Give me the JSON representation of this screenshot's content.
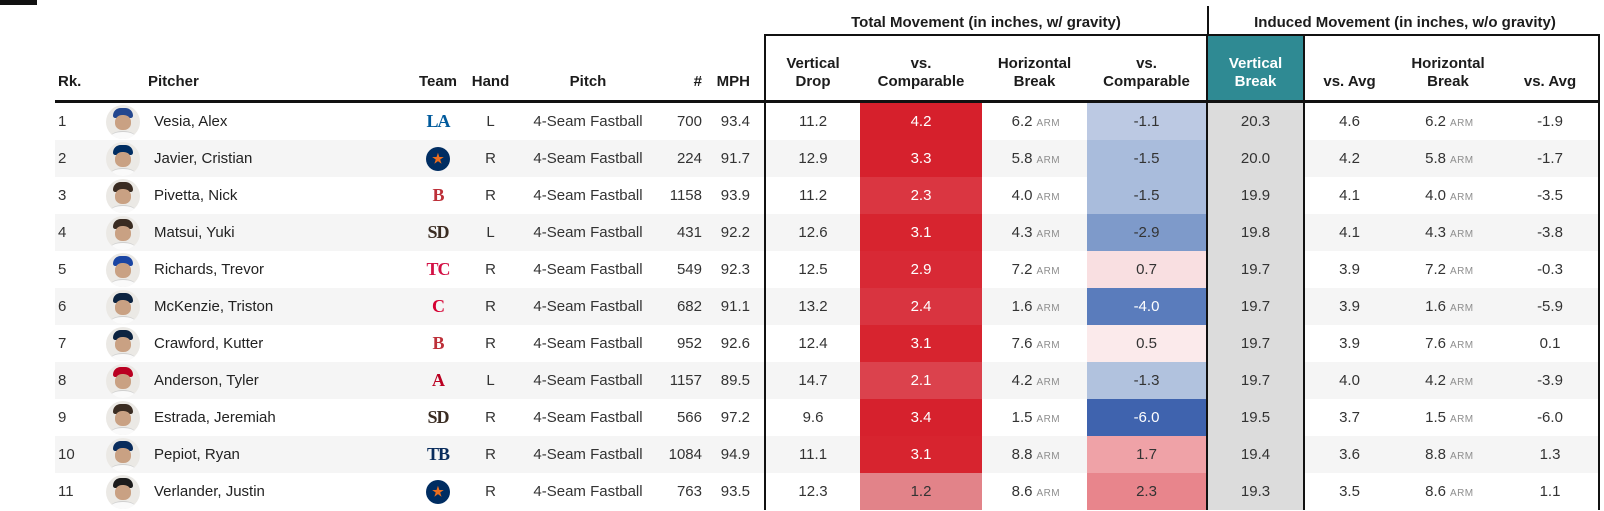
{
  "groups": {
    "total": "Total Movement (in inches, w/ gravity)",
    "induced": "Induced Movement (in inches, w/o gravity)"
  },
  "columns": {
    "rk": "Rk.",
    "pitcher": "Pitcher",
    "team": "Team",
    "hand": "Hand",
    "pitch": "Pitch",
    "count": "#",
    "mph": "MPH",
    "vertical_drop": "Vertical\nDrop",
    "vs_comparable_vert": "vs.\nComparable",
    "horizontal_break_total": "Horizontal\nBreak",
    "vs_comparable_horiz": "vs.\nComparable",
    "vertical_break": "Vertical\nBreak",
    "vs_avg_vert": "vs. Avg",
    "horizontal_break_induced": "Horizontal\nBreak",
    "vs_avg_horiz": "vs. Avg"
  },
  "arm_label": "ARM",
  "colors": {
    "vertical_break_header": "#2f8a93",
    "vertical_break_column": "#dcdcdc",
    "row_stripe": "#f5f5f5",
    "border_black": "#111111"
  },
  "rows": [
    {
      "rk": "1",
      "name": "Vesia, Alex",
      "logo": {
        "text": "LA",
        "color": "#005a9c"
      },
      "cap_color": "#24478f",
      "hand": "L",
      "pitch": "4-Seam Fastball",
      "num": "700",
      "mph": "93.4",
      "vdrop": "11.2",
      "vs_comp_total": {
        "v": "4.2",
        "bg": "#d6202c",
        "fg": "#ffffff"
      },
      "hbreak": "6.2",
      "vs_comp_horiz": {
        "v": "-1.1",
        "bg": "#bcc9e3",
        "fg": "#333333"
      },
      "vbreak": "20.3",
      "vs_avg_vert": "4.6",
      "hbreak2": "6.2",
      "vs_avg_horiz": "-1.9"
    },
    {
      "rk": "2",
      "name": "Javier, Cristian",
      "logo": {
        "text": "★",
        "color": "#eb6e1f",
        "bg": "#002d62",
        "circle": true
      },
      "cap_color": "#002d62",
      "hand": "R",
      "pitch": "4-Seam Fastball",
      "num": "224",
      "mph": "91.7",
      "vdrop": "12.9",
      "vs_comp_total": {
        "v": "3.3",
        "bg": "#d6212d",
        "fg": "#ffffff"
      },
      "hbreak": "5.8",
      "vs_comp_horiz": {
        "v": "-1.5",
        "bg": "#a9bcdc",
        "fg": "#333333"
      },
      "vbreak": "20.0",
      "vs_avg_vert": "4.2",
      "hbreak2": "5.8",
      "vs_avg_horiz": "-1.7"
    },
    {
      "rk": "3",
      "name": "Pivetta, Nick",
      "logo": {
        "text": "B",
        "color": "#bd3039"
      },
      "cap_color": "#3a2c22",
      "hand": "R",
      "pitch": "4-Seam Fastball",
      "num": "1158",
      "mph": "93.9",
      "vdrop": "11.2",
      "vs_comp_total": {
        "v": "2.3",
        "bg": "#da3641",
        "fg": "#ffffff"
      },
      "hbreak": "4.0",
      "vs_comp_horiz": {
        "v": "-1.5",
        "bg": "#a9bcdc",
        "fg": "#333333"
      },
      "vbreak": "19.9",
      "vs_avg_vert": "4.1",
      "hbreak2": "4.0",
      "vs_avg_horiz": "-3.5"
    },
    {
      "rk": "4",
      "name": "Matsui, Yuki",
      "logo": {
        "text": "SD",
        "color": "#3a2c22"
      },
      "cap_color": "#3a2c22",
      "hand": "L",
      "pitch": "4-Seam Fastball",
      "num": "431",
      "mph": "92.2",
      "vdrop": "12.6",
      "vs_comp_total": {
        "v": "3.1",
        "bg": "#d7242f",
        "fg": "#ffffff"
      },
      "hbreak": "4.3",
      "vs_comp_horiz": {
        "v": "-2.9",
        "bg": "#7e9aca",
        "fg": "#333333"
      },
      "vbreak": "19.8",
      "vs_avg_vert": "4.1",
      "hbreak2": "4.3",
      "vs_avg_horiz": "-3.8"
    },
    {
      "rk": "5",
      "name": "Richards, Trevor",
      "logo": {
        "text": "TC",
        "color": "#d31145"
      },
      "cap_color": "#1a45a3",
      "hand": "R",
      "pitch": "4-Seam Fastball",
      "num": "549",
      "mph": "92.3",
      "vdrop": "12.5",
      "vs_comp_total": {
        "v": "2.9",
        "bg": "#d82935",
        "fg": "#ffffff"
      },
      "hbreak": "7.2",
      "vs_comp_horiz": {
        "v": "0.7",
        "bg": "#f9dfe1",
        "fg": "#333333"
      },
      "vbreak": "19.7",
      "vs_avg_vert": "3.9",
      "hbreak2": "7.2",
      "vs_avg_horiz": "-0.3"
    },
    {
      "rk": "6",
      "name": "McKenzie, Triston",
      "logo": {
        "text": "C",
        "color": "#d50032"
      },
      "cap_color": "#0c2340",
      "hand": "R",
      "pitch": "4-Seam Fastball",
      "num": "682",
      "mph": "91.1",
      "vdrop": "13.2",
      "vs_comp_total": {
        "v": "2.4",
        "bg": "#d93440",
        "fg": "#ffffff"
      },
      "hbreak": "1.6",
      "vs_comp_horiz": {
        "v": "-4.0",
        "bg": "#5a7cbc",
        "fg": "#ffffff"
      },
      "vbreak": "19.7",
      "vs_avg_vert": "3.9",
      "hbreak2": "1.6",
      "vs_avg_horiz": "-5.9"
    },
    {
      "rk": "7",
      "name": "Crawford, Kutter",
      "logo": {
        "text": "B",
        "color": "#bd3039"
      },
      "cap_color": "#0c2340",
      "hand": "R",
      "pitch": "4-Seam Fastball",
      "num": "952",
      "mph": "92.6",
      "vdrop": "12.4",
      "vs_comp_total": {
        "v": "3.1",
        "bg": "#d7242f",
        "fg": "#ffffff"
      },
      "hbreak": "7.6",
      "vs_comp_horiz": {
        "v": "0.5",
        "bg": "#fbeaeb",
        "fg": "#333333"
      },
      "vbreak": "19.7",
      "vs_avg_vert": "3.9",
      "hbreak2": "7.6",
      "vs_avg_horiz": "0.1"
    },
    {
      "rk": "8",
      "name": "Anderson, Tyler",
      "logo": {
        "text": "A",
        "color": "#ba0021"
      },
      "cap_color": "#ba0021",
      "hand": "L",
      "pitch": "4-Seam Fastball",
      "num": "1157",
      "mph": "89.5",
      "vdrop": "14.7",
      "vs_comp_total": {
        "v": "2.1",
        "bg": "#db424d",
        "fg": "#ffffff"
      },
      "hbreak": "4.2",
      "vs_comp_horiz": {
        "v": "-1.3",
        "bg": "#b1c2de",
        "fg": "#333333"
      },
      "vbreak": "19.7",
      "vs_avg_vert": "4.0",
      "hbreak2": "4.2",
      "vs_avg_horiz": "-3.9"
    },
    {
      "rk": "9",
      "name": "Estrada, Jeremiah",
      "logo": {
        "text": "SD",
        "color": "#3a2c22"
      },
      "cap_color": "#3a2c22",
      "hand": "R",
      "pitch": "4-Seam Fastball",
      "num": "566",
      "mph": "97.2",
      "vdrop": "9.6",
      "vs_comp_total": {
        "v": "3.4",
        "bg": "#d6212d",
        "fg": "#ffffff"
      },
      "hbreak": "1.5",
      "vs_comp_horiz": {
        "v": "-6.0",
        "bg": "#3f63ae",
        "fg": "#ffffff"
      },
      "vbreak": "19.5",
      "vs_avg_vert": "3.7",
      "hbreak2": "1.5",
      "vs_avg_horiz": "-6.0"
    },
    {
      "rk": "10",
      "name": "Pepiot, Ryan",
      "logo": {
        "text": "TB",
        "color": "#092c5c"
      },
      "cap_color": "#092c5c",
      "hand": "R",
      "pitch": "4-Seam Fastball",
      "num": "1084",
      "mph": "94.9",
      "vdrop": "11.1",
      "vs_comp_total": {
        "v": "3.1",
        "bg": "#d7242f",
        "fg": "#ffffff"
      },
      "hbreak": "8.8",
      "vs_comp_horiz": {
        "v": "1.7",
        "bg": "#efa2a7",
        "fg": "#333333"
      },
      "vbreak": "19.4",
      "vs_avg_vert": "3.6",
      "hbreak2": "8.8",
      "vs_avg_horiz": "1.3"
    },
    {
      "rk": "11",
      "name": "Verlander, Justin",
      "logo": {
        "text": "★",
        "color": "#eb6e1f",
        "bg": "#002d62",
        "circle": true
      },
      "cap_color": "#1c1c1c",
      "hand": "R",
      "pitch": "4-Seam Fastball",
      "num": "763",
      "mph": "93.5",
      "vdrop": "12.3",
      "vs_comp_total": {
        "v": "1.2",
        "bg": "#e28389",
        "fg": "#333333"
      },
      "hbreak": "8.6",
      "vs_comp_horiz": {
        "v": "2.3",
        "bg": "#e8858c",
        "fg": "#333333"
      },
      "vbreak": "19.3",
      "vs_avg_vert": "3.5",
      "hbreak2": "8.6",
      "vs_avg_horiz": "1.1"
    }
  ]
}
